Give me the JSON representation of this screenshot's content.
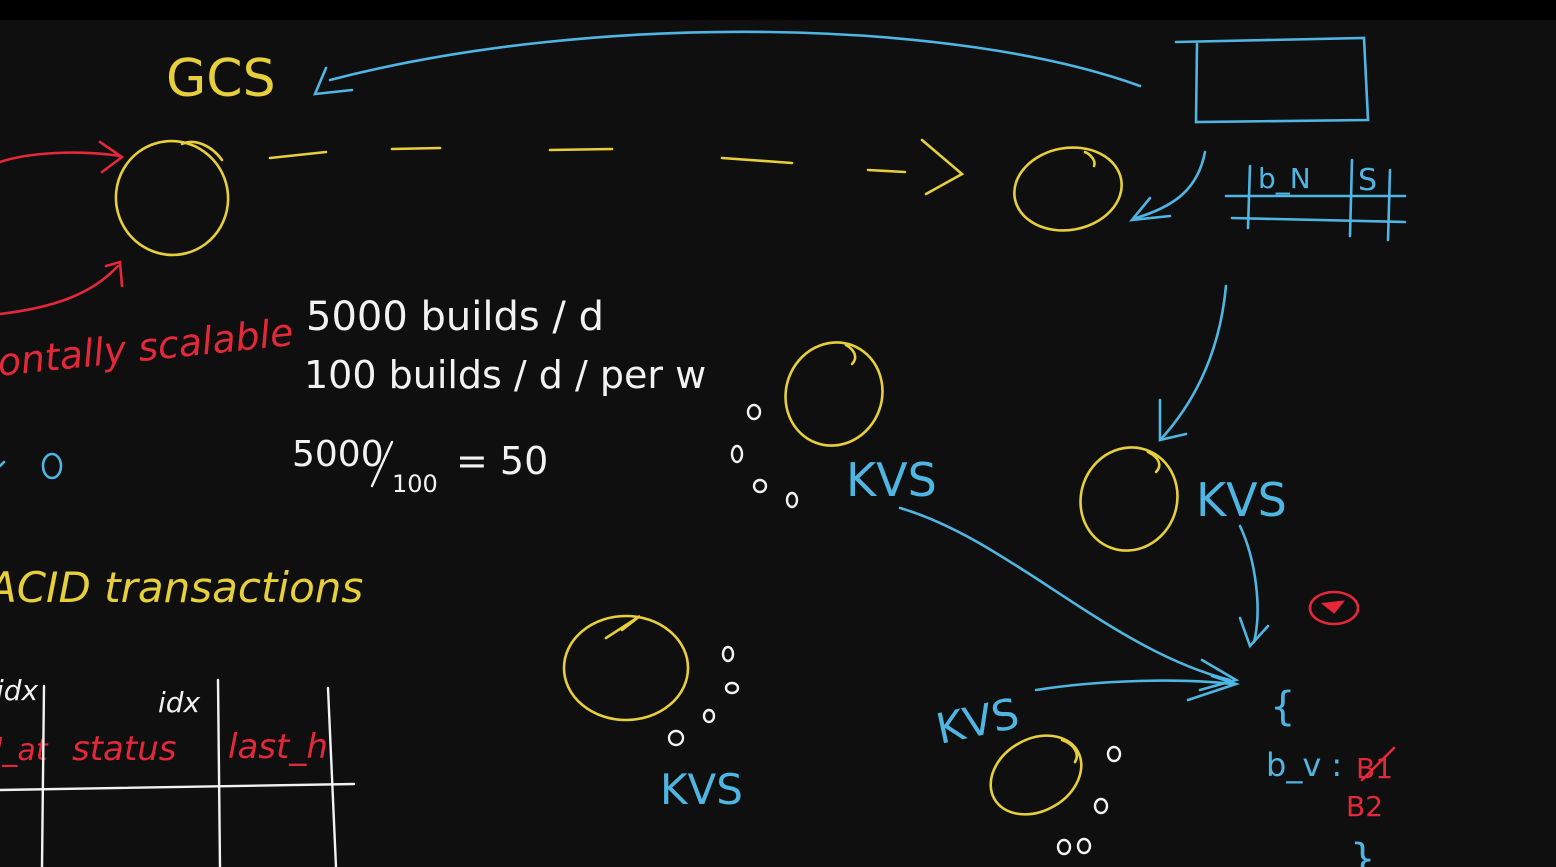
{
  "colors": {
    "background": "#0f0f0f",
    "top_bar": "#000000",
    "yellow": "#e6cf3a",
    "blue": "#4fb6e3",
    "red": "#e3283a",
    "white": "#f2f2f2"
  },
  "labels": {
    "gcs": "GCS",
    "horizontally_scalable": "ontally scalable",
    "builds_per_day": "5000 builds / d",
    "builds_per_day_per_worker": "100 builds / d / per w",
    "calc_numerator": "5000",
    "calc_denominator": "100",
    "calc_result": "= 50",
    "acid": "ACID transactions",
    "kvs_top": "KVS",
    "kvs_right": "KVS",
    "kvs_lower_mid": "KVS",
    "kvs_bottom_left": "KVS",
    "table_header_b": "b_N",
    "table_header_s": "S",
    "idx_left": "idx",
    "idx_mid": "idx",
    "col_lat": "l_at",
    "col_status": "status",
    "col_last": "last_h",
    "map_key": "b_v :",
    "map_struck": "B1",
    "map_value": "B2",
    "brace_top": "{",
    "brace_bottom": "}",
    "left_circle": "0"
  }
}
